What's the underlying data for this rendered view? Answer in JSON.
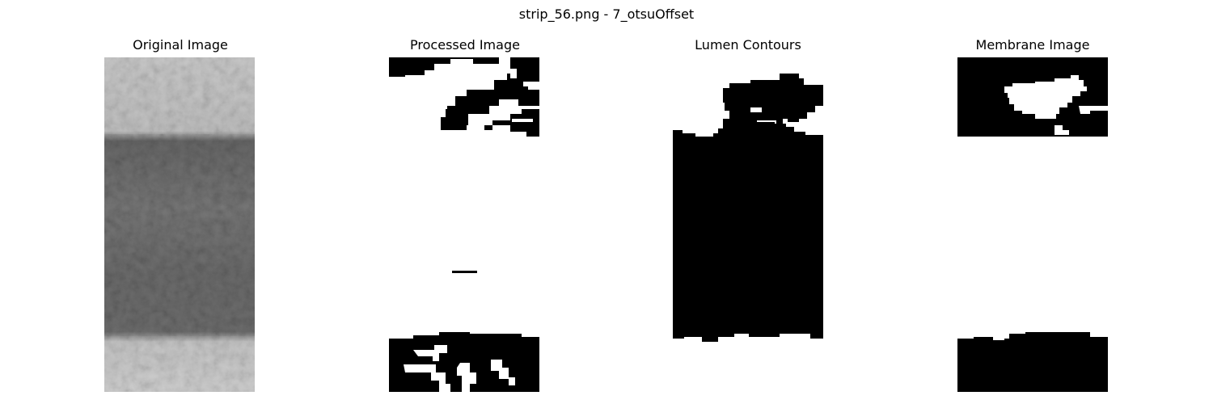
{
  "figure": {
    "suptitle": "strip_56.png - 7_otsuOffset"
  },
  "panels": [
    {
      "title": "Original Image"
    },
    {
      "title": "Processed Image"
    },
    {
      "title": "Lumen Contours"
    },
    {
      "title": "Membrane Image"
    }
  ],
  "colors": {
    "background": "#ffffff",
    "mask_on": "#000000",
    "mask_off": "#ffffff"
  }
}
